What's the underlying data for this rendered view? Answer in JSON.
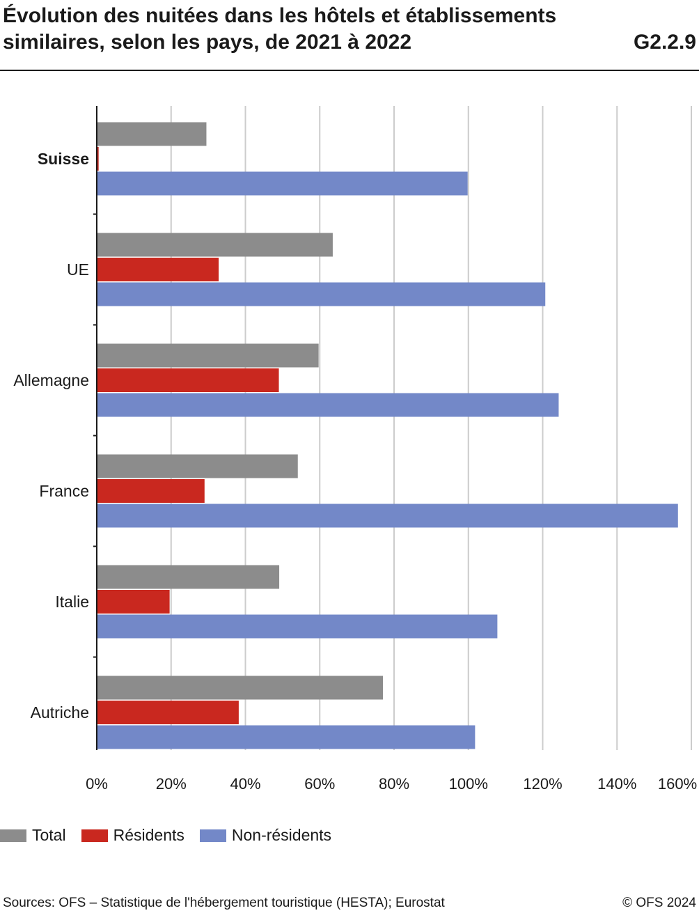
{
  "header": {
    "title": "Évolution des nuitées dans les hôtels et établissements similaires, selon les pays, de 2021 à 2022",
    "code": "G2.2.9"
  },
  "chart_data": {
    "type": "bar",
    "orientation": "horizontal",
    "categories": [
      "Suisse",
      "UE",
      "Allemagne",
      "France",
      "Italie",
      "Autriche"
    ],
    "highlighted_category": "Suisse",
    "series": [
      {
        "name": "Total",
        "color": "#8c8c8c",
        "values": [
          29.5,
          63.5,
          59.7,
          54.1,
          49.1,
          77.0
        ]
      },
      {
        "name": "Résidents",
        "color": "#c9281f",
        "values": [
          0.5,
          32.8,
          49.0,
          29.0,
          19.6,
          38.2
        ]
      },
      {
        "name": "Non-résidents",
        "color": "#7388c8",
        "values": [
          99.8,
          120.7,
          124.3,
          156.4,
          107.8,
          101.8
        ]
      }
    ],
    "xlim": [
      0,
      160
    ],
    "xticks": [
      0,
      20,
      40,
      60,
      80,
      100,
      120,
      140,
      160
    ],
    "xtick_labels": [
      "0%",
      "20%",
      "40%",
      "60%",
      "80%",
      "100%",
      "120%",
      "140%",
      "160%"
    ],
    "grid": true,
    "legend_position": "bottom-left"
  },
  "legend": {
    "items": [
      {
        "label": "Total",
        "color": "#8c8c8c"
      },
      {
        "label": "Résidents",
        "color": "#c9281f"
      },
      {
        "label": "Non-résidents",
        "color": "#7388c8"
      }
    ]
  },
  "footer": {
    "source": "Sources: OFS – Statistique de l'hébergement touristique (HESTA); Eurostat",
    "copyright": "© OFS 2024"
  }
}
